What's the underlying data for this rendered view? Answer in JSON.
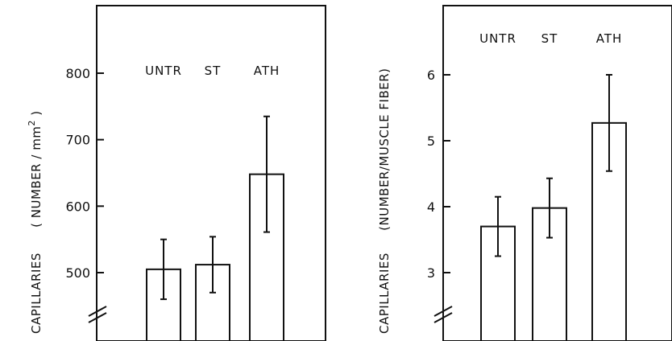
{
  "chart_data": [
    {
      "type": "bar",
      "categories": [
        "UNTR",
        "ST",
        "ATH"
      ],
      "values": [
        505,
        512,
        648
      ],
      "errors": [
        45,
        42,
        87
      ],
      "ylabel_main": "CAPILLARIES",
      "ylabel_units_prefix": "( NUMBER / mm",
      "ylabel_units_sup": "2",
      "ylabel_units_suffix": " )",
      "yticks": [
        500,
        600,
        700,
        800
      ],
      "ylim": [
        400,
        900
      ],
      "axis_break": true
    },
    {
      "type": "bar",
      "categories": [
        "UNTR",
        "ST",
        "ATH"
      ],
      "values": [
        3.7,
        3.98,
        5.27
      ],
      "errors": [
        0.45,
        0.45,
        0.73
      ],
      "ylabel_main": "CAPILLARIES",
      "ylabel_units": "(NUMBER/MUSCLE FIBER)",
      "yticks": [
        3,
        4,
        5,
        6
      ],
      "ylim": [
        2,
        7
      ],
      "axis_break": true
    }
  ],
  "colors": {
    "ink": "#111111",
    "background": "#ffffff"
  }
}
